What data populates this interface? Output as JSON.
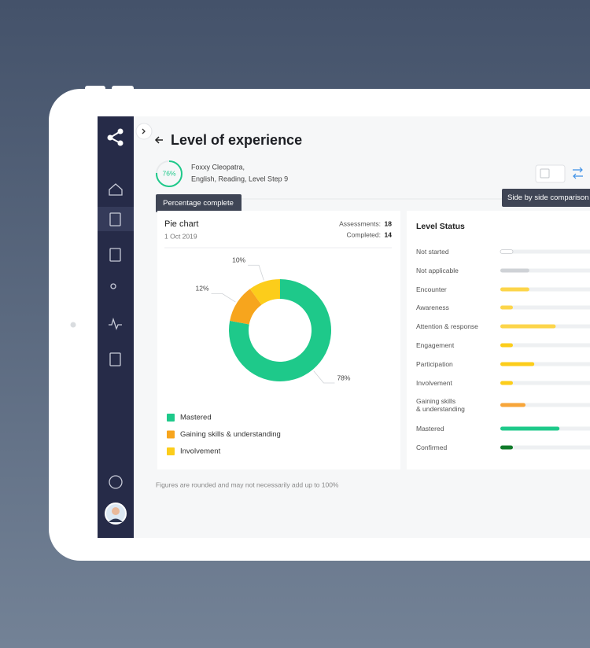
{
  "header": {
    "title": "Level of experience",
    "progress": 76,
    "progress_label": "76%",
    "student": "Foxxy Cleopatra,",
    "subject": "English, Reading, Level Step 9",
    "progress_tooltip": "Percentage complete",
    "compare_tooltip": "Side by side comparison"
  },
  "pie_card": {
    "title": "Pie chart",
    "date": "1 Oct 2019",
    "assessments_label": "Assessments:",
    "assessments": 18,
    "completed_label": "Completed:",
    "completed": 14
  },
  "chart_data": [
    {
      "type": "pie",
      "categories": [
        "Mastered",
        "Gaining skills & understanding",
        "Involvement"
      ],
      "values": [
        78,
        12,
        10
      ],
      "value_labels": [
        "78%",
        "12%",
        "10%"
      ],
      "colors": [
        "#1ec98a",
        "#f7a51d",
        "#fccd1b"
      ]
    },
    {
      "type": "bar",
      "title": "Level Status",
      "orientation": "horizontal",
      "categories": [
        "Not started",
        "Not applicable",
        "Encounter",
        "Awareness",
        "Attention & response",
        "Engagement",
        "Participation",
        "Involvement",
        "Gaining skills\n& understanding",
        "Mastered",
        "Confirmed"
      ],
      "values": [
        10,
        23,
        23,
        10,
        44,
        10,
        27,
        10,
        20,
        47,
        10
      ],
      "colors": [
        "#ffffff",
        "#cfd2d6",
        "#fcd54a",
        "#fcd54a",
        "#fcd54a",
        "#fccd1b",
        "#fccd1b",
        "#fccd1b",
        "#f7a53a",
        "#1ec98a",
        "#0f7a2a"
      ],
      "xlim": [
        0,
        100
      ]
    }
  ],
  "footnote": "Figures are rounded and may not necessarily add up to 100%"
}
